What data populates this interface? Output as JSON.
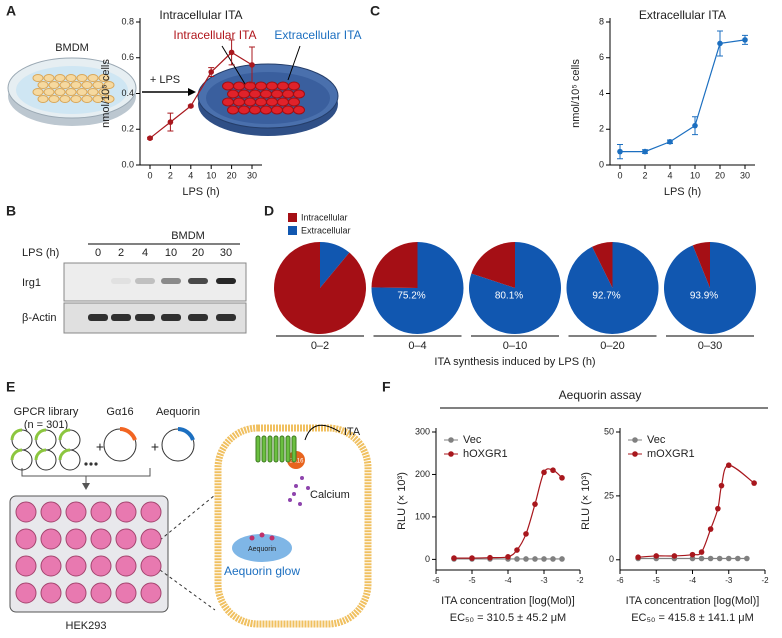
{
  "panel_labels": [
    "A",
    "B",
    "C",
    "D",
    "E",
    "F"
  ],
  "panel_a": {
    "cells": "BMDM",
    "treatment": "+ LPS",
    "intracellular": "Intracellular ITA",
    "extracellular": "Extracellular ITA"
  },
  "panel_b": {
    "title": "BMDM",
    "row_label": "LPS (h)",
    "lanes": [
      "0",
      "2",
      "4",
      "10",
      "20",
      "30"
    ],
    "bands": [
      "Irg1",
      "β-Actin"
    ]
  },
  "panel_e": {
    "library": "GPCR library",
    "library_size": "(n = 301)",
    "g_protein": "Gα16",
    "reporter": "Aequorin",
    "plus": "+",
    "ligand": "ITA",
    "receptor_partner": "Gα16",
    "ion": "Calcium",
    "reporter_protein": "Aequorin",
    "readout": "Aequorin glow",
    "cell_line": "HEK293"
  },
  "panel_f": {
    "title": "Aequorin assay"
  },
  "chart_data": [
    {
      "type": "line",
      "title": "Intracellular ITA",
      "xlabel": "LPS (h)",
      "ylabel": "nmol/10⁵ cells",
      "categories": [
        "0",
        "2",
        "4",
        "10",
        "20",
        "30"
      ],
      "ylim": [
        0,
        0.8
      ],
      "yticks": [
        {
          "value": 0,
          "label": "0.0"
        },
        0.2,
        0.4,
        0.6,
        0.8
      ],
      "series": [
        {
          "color": "#a8171d",
          "values": [
            0.15,
            0.24,
            0.33,
            0.52,
            0.63,
            0.56
          ],
          "errors": [
            0.005,
            0.05,
            0.005,
            0.025,
            0.07,
            0.1
          ]
        }
      ]
    },
    {
      "type": "line",
      "title": "Extracellular ITA",
      "xlabel": "LPS (h)",
      "ylabel": "nmol/10⁵ cells",
      "categories": [
        "0",
        "2",
        "4",
        "10",
        "20",
        "30"
      ],
      "ylim": [
        0,
        8
      ],
      "yticks": [
        0,
        2,
        4,
        6,
        8
      ],
      "series": [
        {
          "color": "#1c6fc0",
          "values": [
            0.75,
            0.75,
            1.3,
            2.2,
            6.8,
            7.0
          ],
          "errors": [
            0.4,
            0.1,
            0.1,
            0.5,
            0.7,
            0.25
          ]
        }
      ]
    },
    {
      "type": "pie",
      "legend": "top-left",
      "categories": [
        "0–2",
        "0–4",
        "0–10",
        "0–20",
        "0–30"
      ],
      "xlabel": "ITA synthesis induced by LPS (h)",
      "series": [
        {
          "name": "Intracellular",
          "color": "#a50f15",
          "values": [
            89,
            24.8,
            19.9,
            7.3,
            6.1
          ]
        },
        {
          "name": "Extracellular",
          "color": "#1157b0",
          "values": [
            11,
            75.2,
            80.1,
            92.7,
            93.9
          ],
          "value_labels": [
            null,
            "75.2%",
            "80.1%",
            "92.7%",
            "93.9%"
          ]
        }
      ]
    },
    {
      "type": "scatter",
      "xlabel": "ITA concentration [log(Mol)]",
      "ylabel": "RLU (× 10³)",
      "annotation": "EC₅₀ = 310.5 ± 45.2 μM",
      "legend": "top-left",
      "xlim": [
        -6,
        -2
      ],
      "xticks": [
        -6,
        -5,
        -4,
        -3,
        -2
      ],
      "ylim": [
        -25,
        300
      ],
      "yticks": [
        0,
        100,
        200,
        300
      ],
      "series": [
        {
          "name": "Vec",
          "color": "#808080",
          "x": [
            -5.5,
            -5,
            -4.5,
            -4,
            -3.75,
            -3.5,
            -3.25,
            -3,
            -2.75,
            -2.5
          ],
          "values": [
            1,
            1,
            1,
            1,
            1,
            1,
            1,
            1,
            1,
            1
          ]
        },
        {
          "name": "hOXGR1",
          "color": "#a8171d",
          "x": [
            -5.5,
            -5,
            -4.5,
            -4,
            -3.75,
            -3.5,
            -3.25,
            -3,
            -2.75,
            -2.5
          ],
          "values": [
            3,
            3,
            4,
            6,
            22,
            60,
            130,
            205,
            210,
            192
          ]
        }
      ]
    },
    {
      "type": "scatter",
      "xlabel": "ITA concentration [log(Mol)]",
      "ylabel": "RLU (× 10³)",
      "annotation": "EC₅₀ = 415.8 ± 141.1 μM",
      "legend": "top-left",
      "xlim": [
        -6,
        -2
      ],
      "xticks": [
        -6,
        -5,
        -4,
        -3,
        -2
      ],
      "ylim": [
        -4,
        50
      ],
      "yticks": [
        0,
        25,
        50
      ],
      "series": [
        {
          "name": "Vec",
          "color": "#808080",
          "x": [
            -5.5,
            -5,
            -4.5,
            -4,
            -3.75,
            -3.5,
            -3.25,
            -3,
            -2.75,
            -2.5
          ],
          "values": [
            0.5,
            0.5,
            0.5,
            0.5,
            0.5,
            0.5,
            0.5,
            0.5,
            0.5,
            0.5
          ]
        },
        {
          "name": "mOXGR1",
          "color": "#a8171d",
          "x": [
            -5.5,
            -5,
            -4.5,
            -4,
            -3.75,
            -3.5,
            -3.3,
            -3.2,
            -3,
            -2.3
          ],
          "values": [
            1,
            1.5,
            1.5,
            2,
            3,
            12,
            20,
            29,
            37,
            30
          ]
        }
      ]
    }
  ]
}
